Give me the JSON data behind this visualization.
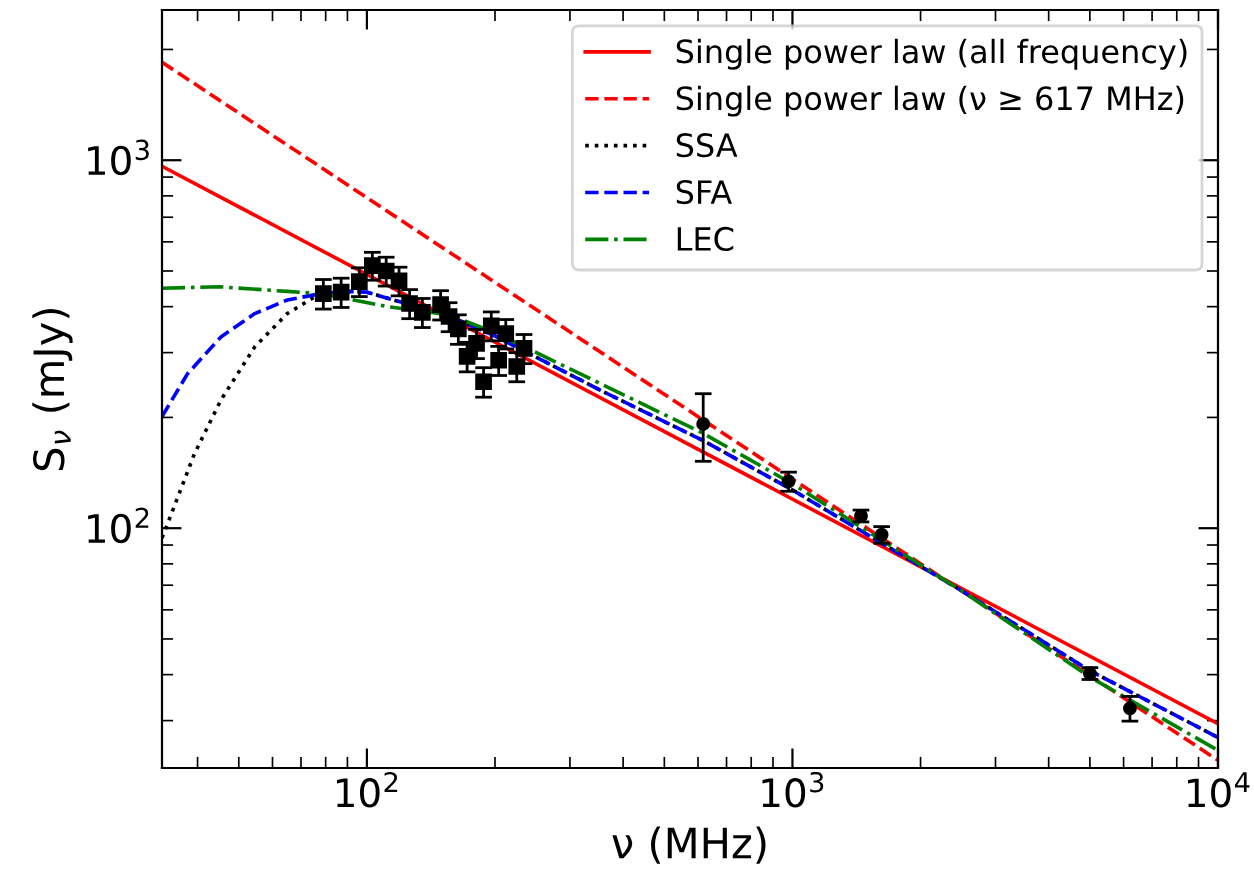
{
  "chart_data": {
    "type": "line",
    "xlabel": "ν (MHz)",
    "ylabel": "S$_{ν}$ (mJy)",
    "log": "xy",
    "grid": false,
    "legend": "top right",
    "xlim": [
      33,
      10000
    ],
    "ylim": [
      22.3,
      2560
    ],
    "xticks": [
      {
        "value": 100,
        "label": "10$^{2}$"
      },
      {
        "value": 1000,
        "label": "10$^{3}$"
      },
      {
        "value": 10000,
        "label": "10$^{4}$"
      }
    ],
    "yticks": [
      {
        "value": 100,
        "label": "10$^{2}$"
      },
      {
        "value": 1000,
        "label": "10$^{3}$"
      }
    ],
    "series": [
      {
        "name": "Single power law (all frequency)",
        "color": "#ff0000",
        "line_style": "solid",
        "marker": "none",
        "x": [
          33,
          10000
        ],
        "values": [
          963,
          29.4
        ]
      },
      {
        "name": "Single power law (ν ≥ 617 MHz)",
        "color": "#ff0000",
        "line_style": "dashed",
        "marker": "none",
        "x": [
          33,
          10000
        ],
        "values": [
          1846,
          23.4
        ]
      },
      {
        "name": "SSA",
        "color": "#000000",
        "line_style": "dotted",
        "marker": "none",
        "x": [
          33,
          35.3,
          39.3,
          45.4,
          54.5,
          65,
          75.3,
          90,
          100,
          156,
          200,
          354,
          617,
          1000,
          2478,
          5000,
          10000
        ],
        "values": [
          94,
          115,
          159,
          223,
          311,
          383,
          425,
          440,
          438,
          377,
          333,
          237,
          173,
          127,
          68,
          41,
          27
        ]
      },
      {
        "name": "SFA",
        "color": "#0000ff",
        "line_style": "dashed",
        "marker": "none",
        "x": [
          33,
          37.9,
          45.4,
          54.5,
          65,
          78,
          90,
          100,
          156,
          200,
          354,
          617,
          1000,
          2478,
          5000,
          10000
        ],
        "values": [
          201,
          263,
          331,
          383,
          417,
          434,
          440,
          438,
          377,
          333,
          237,
          173,
          127,
          68,
          41,
          27
        ]
      },
      {
        "name": "LEC",
        "color": "#008000",
        "line_style": "dashdot",
        "marker": "none",
        "x": [
          33,
          45,
          65,
          78,
          112,
          156,
          200,
          354,
          617,
          1000,
          2478,
          5000,
          10000
        ],
        "values": [
          449,
          453,
          440,
          434,
          400,
          380,
          340,
          247,
          181,
          132,
          68,
          39.4,
          24.9
        ]
      },
      {
        "type": "scatter",
        "color": "#000000",
        "marker": "square",
        "x": [
          79,
          87,
          96,
          103,
          111,
          119,
          126,
          135,
          149,
          156,
          164,
          172,
          181,
          188,
          196,
          204,
          212,
          225,
          234
        ],
        "values": [
          434,
          438,
          468,
          517,
          500,
          470,
          408,
          386,
          405,
          376,
          348,
          293,
          318,
          250,
          355,
          286,
          338,
          275,
          308
        ],
        "errors": [
          40,
          40,
          42,
          45,
          45,
          42,
          37,
          35,
          37,
          34,
          32,
          27,
          29,
          23,
          32,
          26,
          31,
          25,
          28
        ]
      },
      {
        "type": "scatter",
        "color": "#000000",
        "marker": "circle",
        "x": [
          617,
          979,
          1449,
          1620,
          5000,
          6210
        ],
        "values": [
          192,
          134,
          108,
          96,
          40.3,
          32.4
        ],
        "errors": [
          40,
          8,
          4,
          5,
          1.5,
          2.5
        ]
      }
    ]
  }
}
